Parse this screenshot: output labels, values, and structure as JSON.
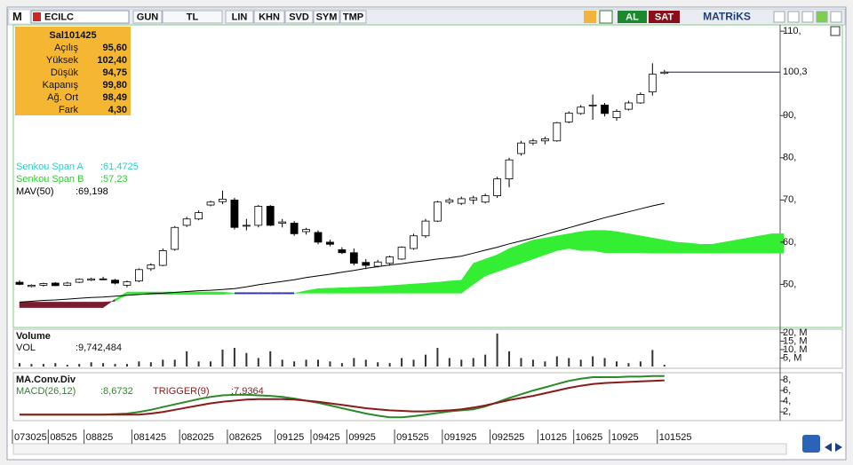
{
  "toolbar": {
    "symbol": "ECILC",
    "buttons": [
      "GUN",
      "TL",
      "LIN",
      "KHN",
      "SVD",
      "SYM",
      "TMP"
    ],
    "buy": "AL",
    "sell": "SAT",
    "brand": "MATRiKS"
  },
  "info_box": {
    "title": "Sal101425",
    "rows": [
      [
        "Açılış",
        "95,60"
      ],
      [
        "Yüksek",
        "102,40"
      ],
      [
        "Düşük",
        "94,75"
      ],
      [
        "Kapanış",
        "99,80"
      ],
      [
        "Ağ. Ort",
        "98,49"
      ],
      [
        "Fark",
        "4,30"
      ]
    ]
  },
  "chart_data": [
    {
      "type": "candlestick",
      "categories": [
        "073025",
        null,
        null,
        "08525",
        null,
        null,
        "08825",
        null,
        null,
        null,
        "081425",
        null,
        null,
        null,
        "082025",
        null,
        null,
        null,
        "082625",
        null,
        null,
        null,
        "09125",
        null,
        null,
        "09425",
        null,
        null,
        "09925",
        null,
        null,
        null,
        "091525",
        null,
        null,
        null,
        "091925",
        null,
        null,
        null,
        "092525",
        null,
        null,
        null,
        "10125",
        null,
        null,
        "10625",
        null,
        null,
        "10925",
        null,
        null,
        null,
        "101525",
        null,
        null,
        null,
        null,
        null,
        null,
        null,
        null,
        null,
        null
      ],
      "open": [
        50.5,
        49.5,
        49.8,
        50.3,
        49.8,
        50.5,
        51.0,
        51.3,
        51.0,
        49.8,
        50.8,
        53.7,
        54.5,
        58.3,
        64.0,
        65.5,
        68.8,
        69.6,
        70.0,
        63.8,
        64.0,
        68.5,
        64.5,
        64.5,
        62.5,
        62.3,
        60.0,
        58.2,
        57.5,
        55.2,
        54.3,
        55.0,
        56.0,
        58.5,
        61.5,
        65.0,
        69.5,
        69.2,
        70.0,
        69.5,
        71.0,
        75.0,
        81.0,
        83.5,
        84.0,
        84.0,
        88.5,
        90.5,
        92.5,
        92.5,
        89.5,
        91.5,
        93.0,
        95.6,
        100.0,
        null,
        null,
        null,
        null,
        null,
        null,
        null,
        null,
        null,
        null
      ],
      "high": [
        51,
        50,
        50.4,
        50.5,
        50.6,
        51.4,
        51.6,
        51.8,
        51.3,
        50.9,
        53.8,
        55.0,
        58.5,
        63.8,
        66.0,
        67.5,
        69.8,
        72.2,
        70.5,
        65.5,
        68.8,
        68.8,
        65.5,
        65.0,
        63.4,
        62.8,
        60.6,
        58.8,
        58.5,
        56.0,
        55.8,
        56.8,
        59.0,
        62.0,
        65.5,
        69.8,
        70.5,
        70.8,
        71.0,
        71.5,
        75.5,
        80.0,
        84.0,
        84.5,
        85.0,
        88.5,
        91.0,
        92.5,
        95.0,
        93.0,
        91.5,
        93.5,
        95.5,
        102.4,
        100.8,
        null,
        null,
        null,
        null,
        null,
        null,
        null,
        null,
        null,
        null
      ],
      "low": [
        49.8,
        49.3,
        49.5,
        49.6,
        49.6,
        50.3,
        50.8,
        51.0,
        50.0,
        49.3,
        50.5,
        53.2,
        54.3,
        58.0,
        63.6,
        65.2,
        68.5,
        69.0,
        63.0,
        62.8,
        63.5,
        63.8,
        63.5,
        61.5,
        61.8,
        59.5,
        59.0,
        57.2,
        54.5,
        53.6,
        54.0,
        54.4,
        55.8,
        58.2,
        61.0,
        64.8,
        69.0,
        68.8,
        69.0,
        69.2,
        70.5,
        73.0,
        80.5,
        83.0,
        83.2,
        83.8,
        88.2,
        90.2,
        89.0,
        89.8,
        88.8,
        91.2,
        92.8,
        94.75,
        99.8,
        null,
        null,
        null,
        null,
        null,
        null,
        null,
        null,
        null,
        null
      ],
      "close": [
        50,
        49.8,
        50.2,
        49.7,
        50.3,
        51.2,
        51.3,
        51.2,
        50.3,
        50.6,
        53.5,
        54.6,
        58.0,
        63.5,
        65.5,
        67.0,
        69.5,
        70.2,
        63.5,
        64.0,
        68.5,
        64.0,
        64.8,
        62.0,
        63.0,
        60.0,
        59.5,
        57.5,
        55.0,
        54.5,
        55.3,
        56.5,
        58.8,
        61.5,
        65.0,
        69.5,
        70.0,
        70.3,
        70.5,
        71.0,
        75.0,
        79.5,
        83.5,
        84.0,
        84.5,
        88.3,
        90.6,
        92.0,
        92.5,
        90.5,
        91.0,
        93.0,
        95.0,
        99.8,
        100.3,
        null,
        null,
        null,
        null,
        null,
        null,
        null,
        null,
        null,
        null
      ],
      "up_color": "#ffffff",
      "down_color": "#000000",
      "cloud": {
        "up_color": "#33ee33",
        "down_color": "#7a1c2c",
        "flat_color": "#3333aa",
        "series": [
          {
            "name": "Senkou Span A",
            "label": ":61,4725",
            "color": "#33cccc",
            "values": [
              44.5,
              44.5,
              44.5,
              44.5,
              44.5,
              44.5,
              44.5,
              44.5,
              46.5,
              48.2,
              48.2,
              48.2,
              48.2,
              48.2,
              48.2,
              48.2,
              48.2,
              48.2,
              47.9,
              47.9,
              47.9,
              47.9,
              47.9,
              47.9,
              48.5,
              49.0,
              49.1,
              49.2,
              49.3,
              49.4,
              49.5,
              49.7,
              49.9,
              50.1,
              50.3,
              50.5,
              50.8,
              51,
              55,
              56,
              57,
              58.5,
              59.5,
              60.5,
              61,
              61.5,
              62,
              62.5,
              62.8,
              62.8,
              62.5,
              62,
              61.5,
              61,
              60.5,
              60,
              59.8,
              59.5,
              59.5,
              60,
              60.5,
              61,
              61.5,
              62,
              62
            ]
          },
          {
            "name": "Senkou Span B",
            "label": ":57,23",
            "color": "#33cc33",
            "values": [
              45.8,
              45.8,
              45.8,
              45.8,
              45.8,
              45.8,
              45.8,
              45.8,
              46,
              47.6,
              47.6,
              47.6,
              47.6,
              47.6,
              47.6,
              47.6,
              47.6,
              47.6,
              47.9,
              47.9,
              47.9,
              47.9,
              47.9,
              47.9,
              47.9,
              47.9,
              47.9,
              47.9,
              47.9,
              47.9,
              47.9,
              47.9,
              47.9,
              47.9,
              47.9,
              47.9,
              47.9,
              47.9,
              50,
              52,
              53,
              54,
              55,
              56,
              57,
              58,
              58.5,
              58,
              58,
              57.5,
              57.5,
              57.5,
              57.5,
              57.4,
              57.4,
              57.4,
              57.4,
              57.4,
              57.4,
              57.4,
              57.4,
              57.4,
              57.4,
              57.4,
              57.4
            ]
          }
        ]
      },
      "series": [
        {
          "name": "MAV(50)",
          "label": ":69,198",
          "color": "#000000",
          "values": [
            45.8,
            46.0,
            46.2,
            46.3,
            46.5,
            46.7,
            46.9,
            47.0,
            47.2,
            47.4,
            47.6,
            47.8,
            47.9,
            48.1,
            48.3,
            48.5,
            48.6,
            48.8,
            49.0,
            49.4,
            49.9,
            50.3,
            50.7,
            51.1,
            51.6,
            52.0,
            52.4,
            52.9,
            53.3,
            53.8,
            54.2,
            54.6,
            54.9,
            55.3,
            55.6,
            56.0,
            56.3,
            56.7,
            57.4,
            58.1,
            58.8,
            59.6,
            60.3,
            61.0,
            61.8,
            62.6,
            63.4,
            64.2,
            65.0,
            65.8,
            66.5,
            67.2,
            67.9,
            68.6,
            69.2,
            null,
            null,
            null,
            null,
            null,
            null,
            null,
            null,
            null,
            null
          ]
        }
      ],
      "last_price": {
        "value": 100.3,
        "label": "100,3"
      },
      "last_color": "#1a1a66",
      "ylim": [
        40,
        111.5
      ],
      "yticks": [
        {
          "value": 110,
          "label": "110,"
        },
        {
          "value": 90,
          "label": "90,"
        },
        {
          "value": 80,
          "label": "80,"
        },
        {
          "value": 70,
          "label": "70,"
        },
        {
          "value": 60,
          "label": "60,"
        },
        {
          "value": 50,
          "label": "50,"
        }
      ]
    },
    {
      "type": "bar",
      "title": "Volume",
      "series": [
        {
          "name": "VOL",
          "label": ":9,742,484",
          "color": "#333333",
          "values": [
            2000000,
            1500000,
            1500000,
            2000000,
            1000000,
            1500000,
            2500000,
            2000000,
            1500000,
            1500000,
            3000000,
            2500000,
            4000000,
            4000000,
            9000000,
            3000000,
            3000000,
            10000000,
            11000000,
            8000000,
            5000000,
            9000000,
            4000000,
            3000000,
            4000000,
            4000000,
            3000000,
            2000000,
            5000000,
            4000000,
            2500000,
            2000000,
            5000000,
            4000000,
            7000000,
            11000000,
            5000000,
            4000000,
            5000000,
            7000000,
            19500000,
            9000000,
            5000000,
            4000000,
            3000000,
            6000000,
            5000000,
            4000000,
            6000000,
            5000000,
            3000000,
            2000000,
            3000000,
            9742484,
            1000000
          ]
        }
      ],
      "ylim": [
        0,
        21500000
      ],
      "yticks": [
        {
          "value": 20000000,
          "label": "20, M"
        },
        {
          "value": 15000000,
          "label": "15, M"
        },
        {
          "value": 10000000,
          "label": "10, M"
        },
        {
          "value": 5000000,
          "label": "5, M"
        }
      ]
    },
    {
      "type": "line",
      "title": "MA.Conv.Div",
      "series": [
        {
          "name": "MACD(26,12)",
          "label": ":8,6732",
          "color": "#2a8a2a",
          "values": [
            1.5,
            1.5,
            1.5,
            1.5,
            1.5,
            1.5,
            1.5,
            1.5,
            1.6,
            1.7,
            2.0,
            2.4,
            2.9,
            3.4,
            3.9,
            4.4,
            4.8,
            5.1,
            5.2,
            5.2,
            5.1,
            5.0,
            4.8,
            4.5,
            4.1,
            3.7,
            3.2,
            2.7,
            2.2,
            1.7,
            1.3,
            1.0,
            1.0,
            1.2,
            1.5,
            1.8,
            2.1,
            2.3,
            2.5,
            3.0,
            3.8,
            4.6,
            5.3,
            6.0,
            6.6,
            7.2,
            7.8,
            8.2,
            8.5,
            8.5,
            8.5,
            8.6,
            8.6,
            8.7,
            8.7
          ]
        },
        {
          "name": "TRIGGER(9)",
          "label": ":7,9364",
          "color": "#8b1a1a",
          "values": [
            1.5,
            1.5,
            1.5,
            1.5,
            1.5,
            1.5,
            1.5,
            1.5,
            1.5,
            1.5,
            1.5,
            1.7,
            2.0,
            2.4,
            2.8,
            3.2,
            3.6,
            3.9,
            4.1,
            4.3,
            4.4,
            4.4,
            4.4,
            4.3,
            4.1,
            3.9,
            3.6,
            3.3,
            3.0,
            2.7,
            2.5,
            2.3,
            2.2,
            2.1,
            2.1,
            2.2,
            2.3,
            2.5,
            2.8,
            3.2,
            3.7,
            4.2,
            4.6,
            5.0,
            5.5,
            6.0,
            6.5,
            6.9,
            7.2,
            7.4,
            7.5,
            7.6,
            7.7,
            7.8,
            7.9
          ]
        }
      ],
      "ylim": [
        0.7,
        9
      ],
      "yticks": [
        {
          "value": 8,
          "label": "8,"
        },
        {
          "value": 6,
          "label": "6,"
        },
        {
          "value": 4,
          "label": "4,"
        },
        {
          "value": 2,
          "label": "2,"
        }
      ]
    }
  ]
}
